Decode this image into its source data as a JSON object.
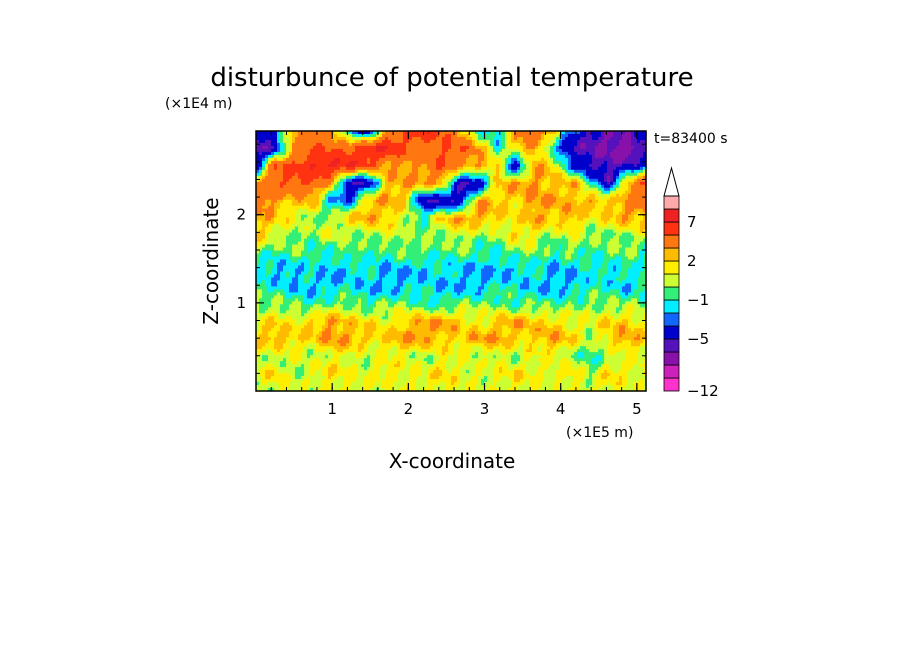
{
  "chart_data": {
    "type": "heatmap",
    "title": "disturbunce of potential temperature",
    "annotation": "t=83400 s",
    "xlabel": "X-coordinate",
    "ylabel": "Z-coordinate",
    "x_unit_label": "(×1E5 m)",
    "y_unit_label": "(×1E4 m)",
    "xlim": [
      0,
      5.12
    ],
    "ylim": [
      0,
      2.95
    ],
    "x_ticks": [
      1,
      2,
      3,
      4,
      5
    ],
    "y_ticks": [
      1,
      2
    ],
    "x_tick_labels": [
      "1",
      "2",
      "3",
      "4",
      "5"
    ],
    "y_tick_labels": [
      "1",
      "2"
    ],
    "colorbar": {
      "extend": "max",
      "labels": [
        "7",
        "2",
        "−1",
        "−5",
        "−12"
      ],
      "label_levels": [
        7,
        2,
        -1,
        -5,
        -12
      ],
      "bands": [
        {
          "lo": -12,
          "hi": -10,
          "color": "#ff33cc"
        },
        {
          "lo": -10,
          "hi": -8,
          "color": "#cc22bb"
        },
        {
          "lo": -8,
          "hi": -6,
          "color": "#8811aa"
        },
        {
          "lo": -6,
          "hi": -5,
          "color": "#5511bb"
        },
        {
          "lo": -5,
          "hi": -3,
          "color": "#0000cc"
        },
        {
          "lo": -3,
          "hi": -2,
          "color": "#1166ff"
        },
        {
          "lo": -2,
          "hi": -1,
          "color": "#00eeff"
        },
        {
          "lo": -1,
          "hi": 0,
          "color": "#33ee77"
        },
        {
          "lo": 0,
          "hi": 1,
          "color": "#ccff33"
        },
        {
          "lo": 1,
          "hi": 2,
          "color": "#ffee00"
        },
        {
          "lo": 2,
          "hi": 3,
          "color": "#ffbb00"
        },
        {
          "lo": 3,
          "hi": 5,
          "color": "#ff7711"
        },
        {
          "lo": 5,
          "hi": 7,
          "color": "#ff3311"
        },
        {
          "lo": 7,
          "hi": 9,
          "color": "#ee2222"
        },
        {
          "lo": 9,
          "hi": 11,
          "color": "#ffaaaa"
        }
      ],
      "over_color": "#ffffff"
    },
    "field": {
      "description_levels": "approximate contour field, rows from top (z=2.95) to bottom (z=0), columns x=0..5.12",
      "rows": [
        [
          -5,
          -3,
          3,
          5,
          3,
          -2,
          -5,
          3,
          5,
          7,
          5,
          3,
          -1,
          -2,
          3,
          5,
          3,
          -3,
          -5,
          -6,
          -5,
          -3
        ],
        [
          -6,
          -5,
          3,
          5,
          5,
          5,
          7,
          7,
          5,
          3,
          5,
          5,
          3,
          -1,
          2,
          3,
          -2,
          -5,
          -6,
          -6,
          -8,
          -5
        ],
        [
          -5,
          5,
          5,
          7,
          7,
          7,
          5,
          3,
          3,
          3,
          5,
          3,
          3,
          2,
          -5,
          3,
          2,
          -3,
          -5,
          -6,
          -5,
          -3
        ],
        [
          3,
          5,
          5,
          5,
          3,
          -5,
          -5,
          2,
          3,
          3,
          3,
          -5,
          -5,
          2,
          3,
          3,
          2,
          3,
          -1,
          -5,
          3,
          5
        ],
        [
          5,
          3,
          2,
          3,
          -2,
          -3,
          2,
          3,
          2,
          -5,
          -5,
          -5,
          3,
          2,
          2,
          3,
          3,
          2,
          3,
          2,
          3,
          5
        ],
        [
          3,
          2,
          1,
          0,
          0,
          2,
          3,
          2,
          1,
          -1,
          2,
          3,
          3,
          2,
          1,
          3,
          2,
          3,
          1,
          2,
          3,
          2
        ],
        [
          2,
          1,
          0,
          0,
          1,
          0,
          0,
          1,
          0,
          0,
          0,
          1,
          0,
          0,
          2,
          1,
          0,
          1,
          0,
          0,
          0,
          1
        ],
        [
          0,
          -1,
          0,
          -1,
          -1,
          0,
          -1,
          -1,
          0,
          0,
          -1,
          0,
          -1,
          -1,
          0,
          0,
          -1,
          0,
          -1,
          0,
          0,
          -1
        ],
        [
          -1,
          -2,
          -2,
          -1,
          -2,
          -2,
          -1,
          -2,
          -2,
          -2,
          -1,
          -2,
          -2,
          -2,
          -2,
          -1,
          -2,
          -2,
          -1,
          -2,
          -1,
          -1
        ],
        [
          -1,
          -1,
          -2,
          -2,
          -2,
          -1,
          -2,
          -2,
          -2,
          -1,
          -2,
          -2,
          -2,
          -1,
          -1,
          -2,
          -2,
          -2,
          -1,
          -1,
          -2,
          -1
        ],
        [
          0,
          0,
          0,
          -1,
          0,
          0,
          -1,
          0,
          0,
          -1,
          -1,
          0,
          0,
          0,
          -1,
          0,
          -1,
          0,
          0,
          0,
          0,
          0
        ],
        [
          1,
          2,
          1,
          2,
          3,
          2,
          2,
          1,
          2,
          3,
          3,
          2,
          1,
          2,
          3,
          2,
          2,
          1,
          1,
          2,
          2,
          1
        ],
        [
          2,
          3,
          2,
          2,
          3,
          3,
          2,
          2,
          3,
          3,
          2,
          2,
          3,
          3,
          2,
          2,
          3,
          2,
          0,
          2,
          3,
          2
        ],
        [
          1,
          0,
          1,
          0,
          1,
          1,
          0,
          1,
          1,
          0,
          1,
          1,
          0,
          1,
          0,
          1,
          1,
          0,
          -1,
          0,
          1,
          1
        ],
        [
          1,
          2,
          0,
          1,
          2,
          1,
          1,
          2,
          1,
          1,
          2,
          1,
          1,
          1,
          2,
          1,
          1,
          2,
          0,
          2,
          1,
          1
        ],
        [
          0,
          1,
          1,
          0,
          1,
          1,
          1,
          0,
          1,
          1,
          1,
          1,
          0,
          1,
          1,
          1,
          0,
          1,
          1,
          1,
          1,
          0
        ]
      ]
    }
  }
}
